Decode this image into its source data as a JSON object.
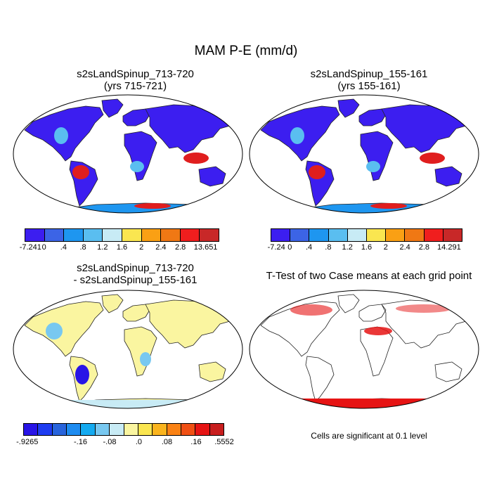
{
  "figure": {
    "title": "MAM P-E (mm/d)"
  },
  "panels": [
    {
      "title_line1": "s2sLandSpinup_713-720",
      "title_line2": "(yrs 715-721)",
      "colorbar_colors": [
        "#3c1ef0",
        "#3c64e6",
        "#1e96f0",
        "#5abef0",
        "#c8ebf5",
        "#fae650",
        "#faa014",
        "#f07814",
        "#f01e1e",
        "#c82828"
      ],
      "colorbar_labels": [
        "-7.241",
        "0",
        ".4",
        ".8",
        "1.2",
        "1.6",
        "2",
        "2.4",
        "2.8",
        "13.651"
      ]
    },
    {
      "title_line1": "s2sLandSpinup_155-161",
      "title_line2": "(yrs 155-161)",
      "colorbar_colors": [
        "#3c1ef0",
        "#3c64e6",
        "#1e96f0",
        "#5abef0",
        "#c8ebf5",
        "#fae650",
        "#faa014",
        "#f07814",
        "#f01e1e",
        "#c82828"
      ],
      "colorbar_labels": [
        "-7.24",
        "0",
        ".4",
        ".8",
        "1.2",
        "1.6",
        "2",
        "2.4",
        "2.8",
        "14.291"
      ]
    },
    {
      "title_line1": "s2sLandSpinup_713-720",
      "title_line2": "- s2sLandSpinup_155-161",
      "colorbar_colors": [
        "#2814e6",
        "#1e3cf0",
        "#2864dc",
        "#1e8cf0",
        "#14aaf0",
        "#78c8f0",
        "#c8ebf5",
        "#faf5a0",
        "#fae650",
        "#fab41e",
        "#fa8214",
        "#f05014",
        "#e61414",
        "#c81e1e"
      ],
      "colorbar_labels": [
        "-.9265",
        "-.16",
        "-.08",
        ".0",
        ".08",
        ".16",
        ".5552"
      ]
    },
    {
      "title_line1": "T-Test of two Case means at each grid point",
      "note": "Cells are significant at 0.1 level"
    }
  ]
}
